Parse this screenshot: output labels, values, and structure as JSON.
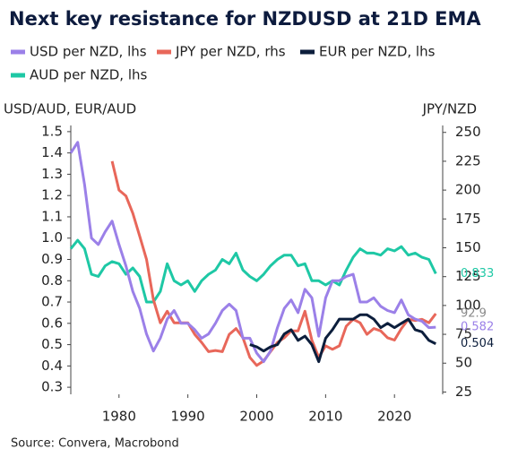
{
  "chart_data": {
    "type": "line",
    "title": "Next key resistance for NZDUSD at 21D EMA",
    "y_label": "USD/AUD, EUR/AUD",
    "y2_label": "JPY/NZD",
    "source": "Source: Convera, Macrobond",
    "x": [
      1973,
      1974,
      1975,
      1976,
      1977,
      1978,
      1979,
      1980,
      1981,
      1982,
      1983,
      1984,
      1985,
      1986,
      1987,
      1988,
      1989,
      1990,
      1991,
      1992,
      1993,
      1994,
      1995,
      1996,
      1997,
      1998,
      1999,
      2000,
      2001,
      2002,
      2003,
      2004,
      2005,
      2006,
      2007,
      2008,
      2009,
      2010,
      2011,
      2012,
      2013,
      2014,
      2015,
      2016,
      2017,
      2018,
      2019,
      2020,
      2021,
      2022,
      2023,
      2024,
      2025,
      2026
    ],
    "xlim": [
      1973,
      2027
    ],
    "xticks": [
      1980,
      1990,
      2000,
      2010,
      2020
    ],
    "ylim": [
      0.25,
      1.55
    ],
    "yticks": [
      0.3,
      0.4,
      0.5,
      0.6,
      0.7,
      0.8,
      0.9,
      {
        "value": 1,
        "label": "1.0"
      },
      1.1,
      1.2,
      1.3,
      1.4,
      1.5
    ],
    "y2lim": [
      19.9,
      259.9
    ],
    "y2ticks": [
      25,
      50,
      75,
      100,
      125,
      150,
      175,
      200,
      225,
      250
    ],
    "series": [
      {
        "name": "USD per NZD, lhs",
        "color": "#9b80e8",
        "end_label": "0.582",
        "values": [
          1.4,
          1.45,
          1.25,
          1.0,
          0.97,
          1.03,
          1.08,
          0.97,
          0.87,
          0.75,
          0.67,
          0.55,
          0.47,
          0.53,
          0.62,
          0.66,
          0.6,
          0.6,
          0.57,
          0.53,
          0.55,
          0.6,
          0.66,
          0.69,
          0.66,
          0.53,
          0.53,
          0.46,
          0.42,
          0.47,
          0.58,
          0.67,
          0.71,
          0.65,
          0.76,
          0.72,
          0.54,
          0.72,
          0.8,
          0.8,
          0.82,
          0.83,
          0.7,
          0.7,
          0.72,
          0.68,
          0.66,
          0.65,
          0.71,
          0.64,
          0.62,
          0.61,
          0.58,
          0.582
        ]
      },
      {
        "name": "JPY per NZD, rhs",
        "color": "#e8675a",
        "axis": "y2",
        "end_label": "92.9",
        "end_label_color": "#8a8a8a",
        "values": [
          null,
          null,
          null,
          null,
          null,
          null,
          225,
          200,
          195,
          180,
          160,
          140,
          105,
          85,
          95,
          85,
          85,
          85,
          75,
          68,
          60,
          61,
          60,
          75,
          80,
          72,
          55,
          48,
          52,
          60,
          68,
          72,
          78,
          78,
          95,
          70,
          55,
          65,
          62,
          65,
          82,
          88,
          85,
          75,
          80,
          78,
          72,
          70,
          80,
          88,
          87,
          88,
          85,
          92.9
        ]
      },
      {
        "name": "EUR per NZD, lhs",
        "color": "#0c1e3c",
        "end_label": "0.504",
        "values": [
          null,
          null,
          null,
          null,
          null,
          null,
          null,
          null,
          null,
          null,
          null,
          null,
          null,
          null,
          null,
          null,
          null,
          null,
          null,
          null,
          null,
          null,
          null,
          null,
          null,
          null,
          0.5,
          0.49,
          0.47,
          0.49,
          0.5,
          0.55,
          0.57,
          0.52,
          0.54,
          0.5,
          0.42,
          0.53,
          0.57,
          0.62,
          0.62,
          0.62,
          0.64,
          0.64,
          0.62,
          0.58,
          0.6,
          0.58,
          0.6,
          0.62,
          0.57,
          0.56,
          0.52,
          0.504
        ]
      },
      {
        "name": "AUD per NZD, lhs",
        "color": "#1ec8a5",
        "end_label": "0.833",
        "values": [
          0.95,
          0.99,
          0.95,
          0.83,
          0.82,
          0.87,
          0.89,
          0.88,
          0.83,
          0.86,
          0.82,
          0.7,
          0.7,
          0.75,
          0.88,
          0.8,
          0.78,
          0.8,
          0.75,
          0.8,
          0.83,
          0.85,
          0.9,
          0.88,
          0.93,
          0.85,
          0.82,
          0.8,
          0.83,
          0.87,
          0.9,
          0.92,
          0.92,
          0.87,
          0.88,
          0.8,
          0.8,
          0.78,
          0.8,
          0.78,
          0.85,
          0.91,
          0.95,
          0.93,
          0.93,
          0.92,
          0.95,
          0.94,
          0.96,
          0.92,
          0.93,
          0.91,
          0.9,
          0.833
        ]
      }
    ]
  }
}
